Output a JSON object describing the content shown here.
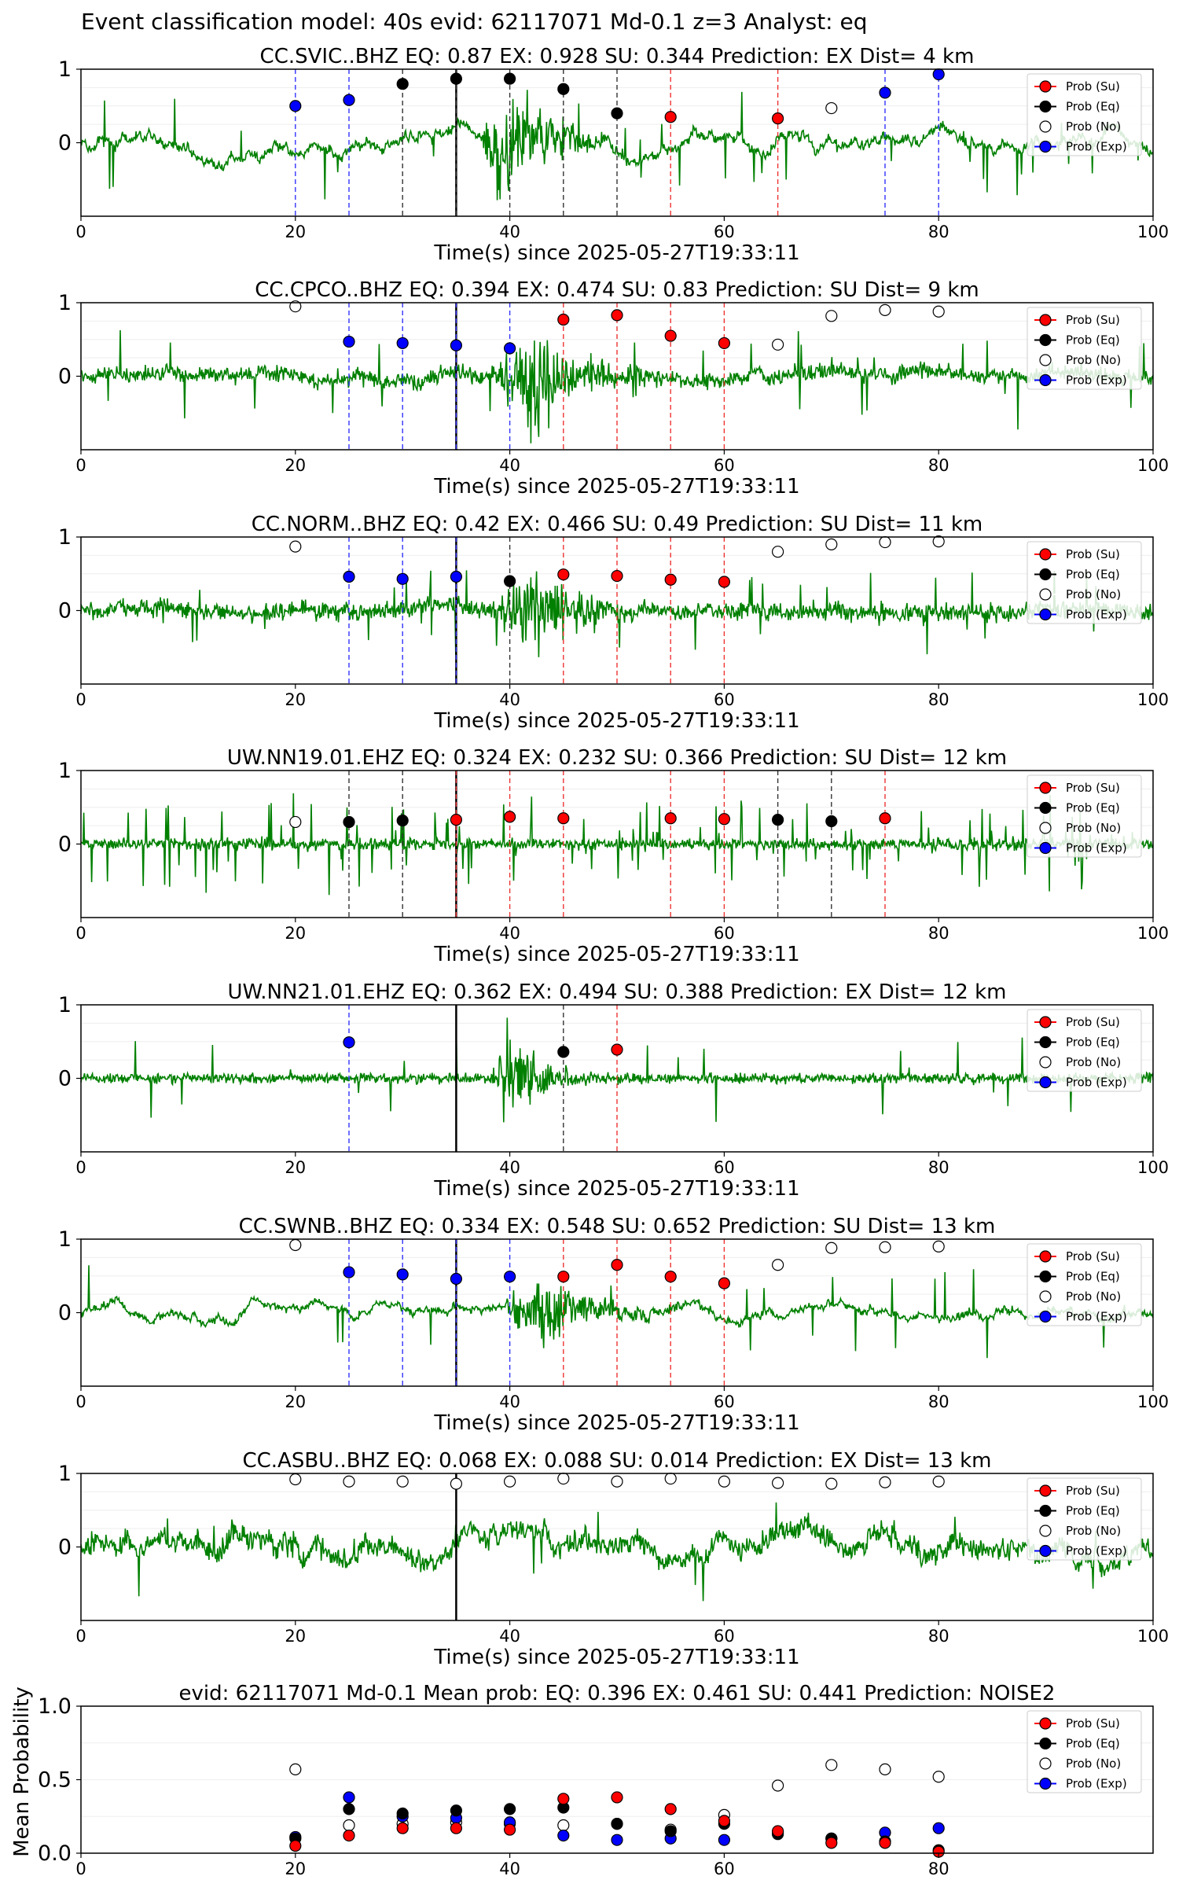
{
  "figure": {
    "suptitle": "Event classification model: 40s evid: 62117071 Md-0.1 z=3 Analyst: eq"
  },
  "legend_labels": [
    "Prob (Su)",
    "Prob (Eq)",
    "Prob (No)",
    "Prob (Exp)"
  ],
  "colors": {
    "waveform": "#008000",
    "su": "#ff0000",
    "eq": "#000000",
    "no": "#ffffff",
    "exp": "#0000ff",
    "arrival_line": "#000000"
  },
  "chart_data": [
    {
      "type": "line",
      "title": "CC.SVIC..BHZ   EQ: 0.87  EX: 0.928  SU: 0.344   Prediction: EX    Dist= 4 km",
      "xlabel": "Time(s) since 2025-05-27T19:33:11",
      "ylabel": "",
      "xlim": [
        0,
        100
      ],
      "ylim": [
        -1,
        1
      ],
      "xticks": [
        "0",
        "20",
        "40",
        "60",
        "80",
        "100"
      ],
      "yticks": [
        "0",
        "1"
      ],
      "arrival_time": 35,
      "waveform": {
        "noise": 0.09,
        "spike": 0.03,
        "amp": 0.75,
        "start": 37,
        "end": 51,
        "peak": 40,
        "drift": 0.12
      },
      "points": [
        {
          "class": "exp",
          "x": 20,
          "y": 0.5
        },
        {
          "class": "exp",
          "x": 25,
          "y": 0.58
        },
        {
          "class": "eq",
          "x": 30,
          "y": 0.8
        },
        {
          "class": "eq",
          "x": 35,
          "y": 0.87
        },
        {
          "class": "eq",
          "x": 40,
          "y": 0.87
        },
        {
          "class": "eq",
          "x": 45,
          "y": 0.73
        },
        {
          "class": "eq",
          "x": 50,
          "y": 0.4
        },
        {
          "class": "su",
          "x": 55,
          "y": 0.35
        },
        {
          "class": "su",
          "x": 65,
          "y": 0.33
        },
        {
          "class": "no",
          "x": 70,
          "y": 0.47
        },
        {
          "class": "exp",
          "x": 75,
          "y": 0.68
        },
        {
          "class": "exp",
          "x": 80,
          "y": 0.93
        }
      ]
    },
    {
      "type": "line",
      "title": "CC.CPCO..BHZ   EQ: 0.394  EX: 0.474  SU: 0.83   Prediction: SU    Dist= 9 km",
      "xlabel": "Time(s) since 2025-05-27T19:33:11",
      "ylabel": "",
      "xlim": [
        0,
        100
      ],
      "ylim": [
        -1,
        1
      ],
      "xticks": [
        "0",
        "20",
        "40",
        "60",
        "80",
        "100"
      ],
      "yticks": [
        "0",
        "1"
      ],
      "arrival_time": 35,
      "waveform": {
        "noise": 0.17,
        "spike": 0.03,
        "amp": 0.6,
        "start": 38,
        "end": 55,
        "peak": 42,
        "drift": 0.05
      },
      "points": [
        {
          "class": "no",
          "x": 20,
          "y": 0.95
        },
        {
          "class": "exp",
          "x": 25,
          "y": 0.47
        },
        {
          "class": "exp",
          "x": 30,
          "y": 0.45
        },
        {
          "class": "exp",
          "x": 35,
          "y": 0.42
        },
        {
          "class": "exp",
          "x": 40,
          "y": 0.38
        },
        {
          "class": "su",
          "x": 45,
          "y": 0.77
        },
        {
          "class": "su",
          "x": 50,
          "y": 0.83
        },
        {
          "class": "su",
          "x": 55,
          "y": 0.55
        },
        {
          "class": "su",
          "x": 60,
          "y": 0.45
        },
        {
          "class": "no",
          "x": 65,
          "y": 0.43
        },
        {
          "class": "no",
          "x": 70,
          "y": 0.82
        },
        {
          "class": "no",
          "x": 75,
          "y": 0.9
        },
        {
          "class": "no",
          "x": 80,
          "y": 0.88
        }
      ]
    },
    {
      "type": "line",
      "title": "CC.NORM..BHZ   EQ: 0.42  EX: 0.466  SU: 0.49   Prediction: SU    Dist= 11 km",
      "xlabel": "Time(s) since 2025-05-27T19:33:11",
      "ylabel": "",
      "xlim": [
        0,
        100
      ],
      "ylim": [
        -1,
        1
      ],
      "xticks": [
        "0",
        "20",
        "40",
        "60",
        "80",
        "100"
      ],
      "yticks": [
        "0",
        "1"
      ],
      "arrival_time": 35,
      "waveform": {
        "noise": 0.2,
        "spike": 0.03,
        "amp": 0.55,
        "start": 38,
        "end": 54,
        "peak": 42,
        "drift": 0.04
      },
      "points": [
        {
          "class": "no",
          "x": 20,
          "y": 0.87
        },
        {
          "class": "exp",
          "x": 25,
          "y": 0.46
        },
        {
          "class": "exp",
          "x": 30,
          "y": 0.43
        },
        {
          "class": "exp",
          "x": 35,
          "y": 0.46
        },
        {
          "class": "eq",
          "x": 40,
          "y": 0.4
        },
        {
          "class": "su",
          "x": 45,
          "y": 0.49
        },
        {
          "class": "su",
          "x": 50,
          "y": 0.47
        },
        {
          "class": "su",
          "x": 55,
          "y": 0.42
        },
        {
          "class": "su",
          "x": 60,
          "y": 0.39
        },
        {
          "class": "no",
          "x": 65,
          "y": 0.8
        },
        {
          "class": "no",
          "x": 70,
          "y": 0.9
        },
        {
          "class": "no",
          "x": 75,
          "y": 0.93
        },
        {
          "class": "no",
          "x": 80,
          "y": 0.94
        }
      ]
    },
    {
      "type": "line",
      "title": "UW.NN19.01.EHZ   EQ: 0.324  EX: 0.232  SU: 0.366   Prediction: SU    Dist= 12 km",
      "xlabel": "Time(s) since 2025-05-27T19:33:11",
      "ylabel": "",
      "xlim": [
        0,
        100
      ],
      "ylim": [
        -1,
        1
      ],
      "xticks": [
        "0",
        "20",
        "40",
        "60",
        "80",
        "100"
      ],
      "yticks": [
        "0",
        "1"
      ],
      "arrival_time": 35,
      "waveform": {
        "noise": 0.13,
        "spike": 0.1,
        "amp": 0.0,
        "start": 0,
        "end": 0,
        "peak": 0,
        "drift": 0.0
      },
      "points": [
        {
          "class": "no",
          "x": 20,
          "y": 0.3
        },
        {
          "class": "eq",
          "x": 25,
          "y": 0.3
        },
        {
          "class": "eq",
          "x": 30,
          "y": 0.32
        },
        {
          "class": "su",
          "x": 35,
          "y": 0.33
        },
        {
          "class": "su",
          "x": 40,
          "y": 0.37
        },
        {
          "class": "su",
          "x": 45,
          "y": 0.35
        },
        {
          "class": "su",
          "x": 55,
          "y": 0.35
        },
        {
          "class": "su",
          "x": 60,
          "y": 0.34
        },
        {
          "class": "eq",
          "x": 65,
          "y": 0.33
        },
        {
          "class": "eq",
          "x": 70,
          "y": 0.31
        },
        {
          "class": "su",
          "x": 75,
          "y": 0.35
        }
      ]
    },
    {
      "type": "line",
      "title": "UW.NN21.01.EHZ   EQ: 0.362  EX: 0.494  SU: 0.388   Prediction: EX    Dist= 12 km",
      "xlabel": "Time(s) since 2025-05-27T19:33:11",
      "ylabel": "",
      "xlim": [
        0,
        100
      ],
      "ylim": [
        -1,
        1
      ],
      "xticks": [
        "0",
        "20",
        "40",
        "60",
        "80",
        "100"
      ],
      "yticks": [
        "0",
        "1"
      ],
      "arrival_time": 35,
      "waveform": {
        "noise": 0.12,
        "spike": 0.02,
        "amp": 0.65,
        "start": 38,
        "end": 48,
        "peak": 40,
        "drift": 0.0
      },
      "points": [
        {
          "class": "exp",
          "x": 25,
          "y": 0.49
        },
        {
          "class": "eq",
          "x": 45,
          "y": 0.36
        },
        {
          "class": "su",
          "x": 50,
          "y": 0.39
        }
      ]
    },
    {
      "type": "line",
      "title": "CC.SWNB..BHZ   EQ: 0.334  EX: 0.548  SU: 0.652   Prediction: SU    Dist= 13 km",
      "xlabel": "Time(s) since 2025-05-27T19:33:11",
      "ylabel": "",
      "xlim": [
        0,
        100
      ],
      "ylim": [
        -1,
        1
      ],
      "xticks": [
        "0",
        "20",
        "40",
        "60",
        "80",
        "100"
      ],
      "yticks": [
        "0",
        "1"
      ],
      "arrival_time": 35,
      "waveform": {
        "noise": 0.07,
        "spike": 0.02,
        "amp": 0.45,
        "start": 39,
        "end": 56,
        "peak": 43,
        "drift": 0.08
      },
      "points": [
        {
          "class": "no",
          "x": 20,
          "y": 0.92
        },
        {
          "class": "exp",
          "x": 25,
          "y": 0.55
        },
        {
          "class": "exp",
          "x": 30,
          "y": 0.52
        },
        {
          "class": "exp",
          "x": 35,
          "y": 0.46
        },
        {
          "class": "exp",
          "x": 40,
          "y": 0.49
        },
        {
          "class": "su",
          "x": 45,
          "y": 0.49
        },
        {
          "class": "su",
          "x": 50,
          "y": 0.65
        },
        {
          "class": "su",
          "x": 55,
          "y": 0.49
        },
        {
          "class": "su",
          "x": 60,
          "y": 0.4
        },
        {
          "class": "no",
          "x": 65,
          "y": 0.65
        },
        {
          "class": "no",
          "x": 70,
          "y": 0.88
        },
        {
          "class": "no",
          "x": 75,
          "y": 0.89
        },
        {
          "class": "no",
          "x": 80,
          "y": 0.9
        }
      ]
    },
    {
      "type": "line",
      "title": "CC.ASBU..BHZ   EQ: 0.068  EX: 0.088  SU: 0.014   Prediction: EX    Dist= 13 km",
      "xlabel": "Time(s) since 2025-05-27T19:33:11",
      "ylabel": "",
      "xlim": [
        0,
        100
      ],
      "ylim": [
        -1,
        1
      ],
      "xticks": [
        "0",
        "20",
        "40",
        "60",
        "80",
        "100"
      ],
      "yticks": [
        "0",
        "1"
      ],
      "arrival_time": 35,
      "waveform": {
        "noise": 0.22,
        "spike": 0.02,
        "amp": 0.0,
        "start": 0,
        "end": 0,
        "peak": 0,
        "drift": 0.15
      },
      "points": [
        {
          "class": "no",
          "x": 20,
          "y": 0.92
        },
        {
          "class": "no",
          "x": 25,
          "y": 0.89
        },
        {
          "class": "no",
          "x": 30,
          "y": 0.89
        },
        {
          "class": "no",
          "x": 35,
          "y": 0.86
        },
        {
          "class": "no",
          "x": 40,
          "y": 0.89
        },
        {
          "class": "no",
          "x": 45,
          "y": 0.93
        },
        {
          "class": "no",
          "x": 50,
          "y": 0.89
        },
        {
          "class": "no",
          "x": 55,
          "y": 0.93
        },
        {
          "class": "no",
          "x": 60,
          "y": 0.89
        },
        {
          "class": "no",
          "x": 65,
          "y": 0.87
        },
        {
          "class": "no",
          "x": 70,
          "y": 0.86
        },
        {
          "class": "no",
          "x": 75,
          "y": 0.88
        },
        {
          "class": "no",
          "x": 80,
          "y": 0.89
        }
      ]
    },
    {
      "type": "scatter",
      "title": "evid: 62117071  Md-0.1   Mean prob:   EQ: 0.396  EX: 0.461  SU: 0.441   Prediction: NOISE2",
      "xlabel": "",
      "ylabel": "Mean Probability",
      "xlim": [
        0,
        100
      ],
      "ylim": [
        0,
        1
      ],
      "xticks": [
        "0",
        "20",
        "40",
        "60",
        "80"
      ],
      "yticks": [
        "0.0",
        "0.5",
        "1.0"
      ],
      "series": [
        {
          "name": "Prob (No)",
          "class": "no",
          "x": [
            20,
            25,
            30,
            35,
            40,
            45,
            50,
            55,
            60,
            65,
            70,
            75,
            80
          ],
          "y": [
            0.57,
            0.19,
            0.2,
            0.21,
            0.2,
            0.19,
            0.2,
            0.16,
            0.26,
            0.46,
            0.6,
            0.57,
            0.52
          ]
        },
        {
          "name": "Prob (Exp)",
          "class": "exp",
          "x": [
            20,
            25,
            30,
            35,
            40,
            45,
            50,
            55,
            60,
            65,
            70,
            75,
            80
          ],
          "y": [
            0.11,
            0.38,
            0.25,
            0.24,
            0.21,
            0.12,
            0.09,
            0.1,
            0.09,
            0.14,
            0.1,
            0.14,
            0.17
          ]
        },
        {
          "name": "Prob (Eq)",
          "class": "eq",
          "x": [
            20,
            25,
            30,
            35,
            40,
            45,
            50,
            55,
            60,
            65,
            70,
            75,
            80
          ],
          "y": [
            0.1,
            0.3,
            0.27,
            0.29,
            0.3,
            0.31,
            0.2,
            0.15,
            0.2,
            0.13,
            0.1,
            0.08,
            0.02
          ]
        },
        {
          "name": "Prob (Su)",
          "class": "su",
          "x": [
            20,
            25,
            30,
            35,
            40,
            45,
            50,
            55,
            60,
            65,
            70,
            75,
            80
          ],
          "y": [
            0.05,
            0.12,
            0.17,
            0.17,
            0.16,
            0.37,
            0.38,
            0.3,
            0.22,
            0.15,
            0.07,
            0.07,
            0.01
          ]
        }
      ]
    }
  ]
}
